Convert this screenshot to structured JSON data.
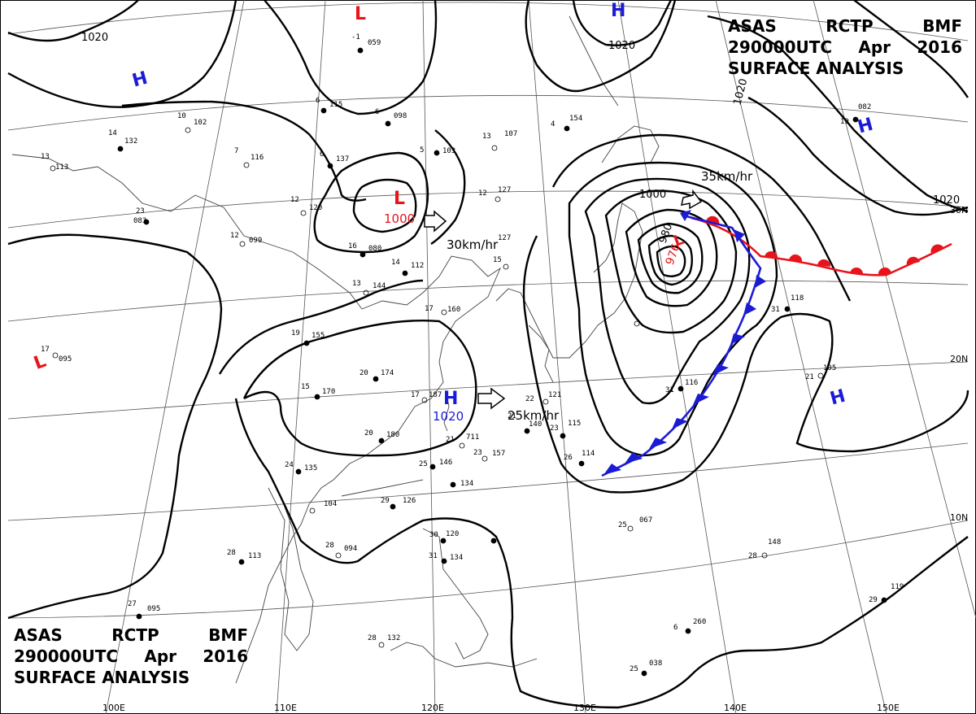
{
  "header": {
    "line1": [
      "ASAS",
      "RCTP",
      "BMF"
    ],
    "line2": [
      "290000UTC",
      "Apr",
      "2016"
    ],
    "line3": "SURFACE ANALYSIS"
  },
  "isobar_labels": {
    "top_left": "1020",
    "top_center": "1020",
    "top_right_a": "1020",
    "top_right_b": "1020",
    "low_center_1000": "1000",
    "low_center_980": "980",
    "ring_1000": "1000",
    "high_1020": "1020"
  },
  "pressure_centers": {
    "low_nw": {
      "symbol": "L",
      "value": "1000"
    },
    "low_ne": {
      "symbol": "L",
      "value": "976"
    },
    "low_top": {
      "symbol": "L"
    },
    "low_west": {
      "symbol": "L"
    },
    "high_c": {
      "symbol": "H",
      "value": "1020"
    },
    "high_nw": {
      "symbol": "H"
    },
    "high_top": {
      "symbol": "H"
    },
    "high_ne": {
      "symbol": "H"
    },
    "high_e": {
      "symbol": "H"
    }
  },
  "motions": {
    "m1": "30km/hr",
    "m2": "25km/hr",
    "m3": "35km/hr"
  },
  "grid_labels": {
    "lat30": "30N",
    "lat20": "20N",
    "lat10": "10N",
    "lon100": "100E",
    "lon110": "110E",
    "lon120": "120E",
    "lon130": "130E",
    "lon140": "140E",
    "lon150": "150E"
  },
  "stations": [
    {
      "t": "-1",
      "p": "059"
    },
    {
      "t": "10",
      "p": "102"
    },
    {
      "t": "14",
      "p": "132"
    },
    {
      "t": "7",
      "p": "116"
    },
    {
      "t": "6",
      "p": "137"
    },
    {
      "t": "6",
      "p": "115"
    },
    {
      "t": "6",
      "p": "098"
    },
    {
      "t": "5",
      "p": "103"
    },
    {
      "t": "13",
      "p": "107"
    },
    {
      "t": "4",
      "p": "154"
    },
    {
      "t": "12",
      "p": "120"
    },
    {
      "t": "12",
      "p": "127"
    },
    {
      "t": "23",
      "p": "083"
    },
    {
      "t": "12",
      "p": "099"
    },
    {
      "t": "16",
      "p": "080"
    },
    {
      "t": "14",
      "p": "112"
    },
    {
      "t": "13",
      "p": "144"
    },
    {
      "t": "15",
      "p": "127"
    },
    {
      "t": "17",
      "p": "160"
    },
    {
      "t": "19",
      "p": "155"
    },
    {
      "t": "20",
      "p": "174"
    },
    {
      "t": "15",
      "p": "170"
    },
    {
      "t": "17",
      "p": "187"
    },
    {
      "t": "22",
      "p": "121"
    },
    {
      "t": "20",
      "p": "180"
    },
    {
      "t": "21",
      "p": "140"
    },
    {
      "t": "23",
      "p": "115"
    },
    {
      "t": "26",
      "p": "114"
    },
    {
      "t": "21",
      "p": "711"
    },
    {
      "t": "23",
      "p": "157"
    },
    {
      "t": "25",
      "p": "146"
    },
    {
      "t": "24",
      "p": "135"
    },
    {
      "t": "27",
      "p": "134"
    },
    {
      "t": "29",
      "p": "126"
    },
    {
      "t": "26",
      "p": "104"
    },
    {
      "t": "28",
      "p": "094"
    },
    {
      "t": "28",
      "p": "113"
    },
    {
      "t": "27",
      "p": "095"
    },
    {
      "t": "30",
      "p": "120"
    },
    {
      "t": "31",
      "p": "134"
    },
    {
      "t": "28",
      "p": "132"
    },
    {
      "t": "28",
      "p": "148"
    },
    {
      "t": "25",
      "p": "067"
    },
    {
      "t": "21",
      "p": "105"
    },
    {
      "t": "31",
      "p": "116"
    },
    {
      "t": "31",
      "p": "118"
    },
    {
      "t": "29",
      "p": "119"
    },
    {
      "t": "6",
      "p": "260"
    },
    {
      "t": "25",
      "p": "038"
    },
    {
      "t": "19",
      "p": "082"
    },
    {
      "t": "17",
      "p": "095"
    },
    {
      "t": "13",
      "p": "113"
    }
  ],
  "colors": {
    "low": "#e8141b",
    "high": "#1b1bd6",
    "front": "#000",
    "ink": "#000"
  }
}
